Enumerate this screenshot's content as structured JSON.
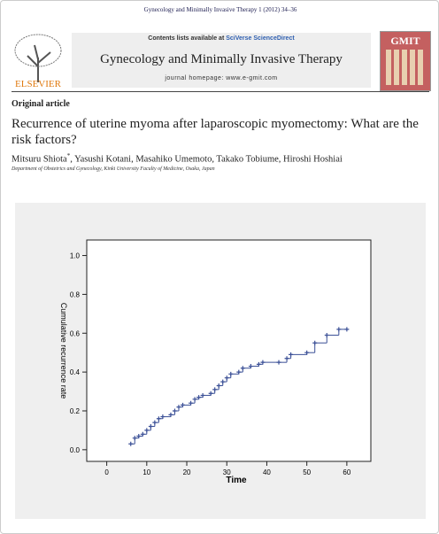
{
  "header": {
    "citation": "Gynecology and Minimally Invasive Therapy 1 (2012) 34–36",
    "contents_prefix": "Contents lists available at",
    "contents_link": "SciVerse ScienceDirect",
    "journal": "Gynecology and Minimally Invasive Therapy",
    "homepage": "journal homepage: www.e-gmit.com",
    "publisher": "ELSEVIER",
    "cover": "GMIT"
  },
  "article": {
    "section": "Original article",
    "title": "Recurrence of uterine myoma after laparoscopic myomectomy: What are the risk factors?",
    "authors": {
      "first": "Mitsuru Shiota",
      "mark": "*",
      "rest": ", Yasushi Kotani, Masahiko Umemoto, Takako Tobiume, Hiroshi Hoshiai"
    },
    "affiliation": "Department of Obstetrics and Gynecology, Kinki University Faculty of Medicine, Osaka, Japan"
  },
  "chart_data": {
    "type": "step",
    "x_label": "Time",
    "y_label": "Cumulative recurrence rate",
    "color": "#3a4f96",
    "x": [
      6,
      7,
      8,
      9,
      10,
      11,
      12,
      13,
      14,
      16,
      17,
      18,
      19,
      21,
      22,
      23,
      24,
      26,
      27,
      28,
      29,
      30,
      31,
      33,
      34,
      36,
      38,
      39,
      43,
      45,
      46,
      50,
      52,
      55,
      58,
      60
    ],
    "values": [
      0.03,
      0.06,
      0.07,
      0.08,
      0.1,
      0.12,
      0.14,
      0.16,
      0.17,
      0.18,
      0.2,
      0.22,
      0.23,
      0.24,
      0.26,
      0.27,
      0.28,
      0.29,
      0.31,
      0.33,
      0.35,
      0.37,
      0.39,
      0.4,
      0.42,
      0.43,
      0.44,
      0.45,
      0.45,
      0.47,
      0.49,
      0.5,
      0.55,
      0.59,
      0.62,
      0.62
    ],
    "xlim": [
      -5,
      66
    ],
    "ylim": [
      -0.06,
      1.08
    ],
    "xticks": [
      0,
      10,
      20,
      30,
      40,
      50,
      60
    ],
    "yticks": [
      {
        "value": 0,
        "label": "0.0"
      },
      {
        "value": 0.2,
        "label": "0.2"
      },
      {
        "value": 0.4,
        "label": "0.4"
      },
      {
        "value": 0.6,
        "label": "0.6"
      },
      {
        "value": 0.8,
        "label": "0.8"
      },
      {
        "value": 1,
        "label": "1.0"
      }
    ]
  }
}
